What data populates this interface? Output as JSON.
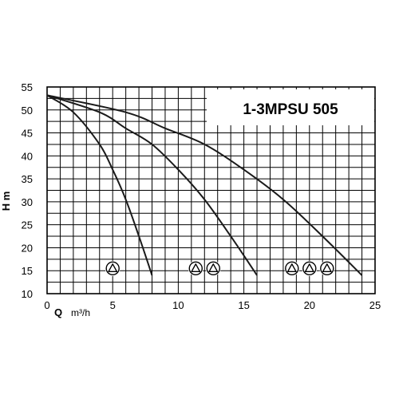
{
  "chart_data": {
    "type": "line",
    "title": "1-3MPSU 505",
    "xlabel": "Q",
    "xunit": "m³/h",
    "ylabel": "H m",
    "xlim": [
      0,
      25
    ],
    "ylim": [
      10,
      55
    ],
    "xticks": [
      "0",
      "5",
      "10",
      "15",
      "20",
      "25"
    ],
    "yticks": [
      "10",
      "15",
      "20",
      "25",
      "30",
      "35",
      "40",
      "45",
      "50",
      "55"
    ],
    "grid": true,
    "series": [
      {
        "pumps": 1,
        "x": [
          0,
          2,
          4,
          5,
          6,
          7,
          8
        ],
        "y": [
          53.2,
          49.5,
          42.5,
          37,
          30.5,
          22.5,
          14
        ]
      },
      {
        "pumps": 2,
        "x": [
          0,
          4,
          6,
          8,
          10,
          12,
          14,
          16
        ],
        "y": [
          53.2,
          49.5,
          46,
          42.5,
          37,
          30.5,
          22.5,
          14
        ]
      },
      {
        "pumps": 3,
        "x": [
          0,
          6,
          9,
          12,
          15,
          18,
          21,
          24
        ],
        "y": [
          53.2,
          49.5,
          46,
          42.5,
          37,
          30.5,
          22.5,
          14
        ]
      }
    ],
    "pump_symbol_groups": [
      {
        "count": 1,
        "x": 5,
        "y": 15.5
      },
      {
        "count": 2,
        "x": 12,
        "y": 15.5
      },
      {
        "count": 3,
        "x": 20,
        "y": 15.5
      }
    ]
  }
}
